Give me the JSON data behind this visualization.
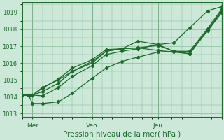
{
  "bg_color": "#cce8d8",
  "grid_color": "#88bb99",
  "line_color": "#1a6b2a",
  "xlabel": "Pression niveau de la mer( hPa )",
  "ylim": [
    1012.8,
    1019.6
  ],
  "yticks": [
    1013,
    1014,
    1015,
    1016,
    1017,
    1018,
    1019
  ],
  "xlim": [
    0.0,
    1.0
  ],
  "xtick_labels": [
    "Mer",
    "Ven",
    "Jeu"
  ],
  "xtick_positions": [
    0.05,
    0.35,
    0.68
  ],
  "vlines": [
    0.05,
    0.35,
    0.68
  ],
  "series_x": [
    [
      0.0,
      0.03,
      0.05,
      0.1,
      0.18,
      0.25,
      0.35,
      0.42,
      0.5,
      0.58,
      0.68,
      0.76,
      0.84,
      0.93,
      1.0
    ],
    [
      0.0,
      0.03,
      0.05,
      0.1,
      0.18,
      0.25,
      0.35,
      0.42,
      0.5,
      0.58,
      0.68,
      0.76,
      0.84,
      0.93,
      1.0
    ],
    [
      0.0,
      0.03,
      0.05,
      0.1,
      0.18,
      0.25,
      0.35,
      0.42,
      0.5,
      0.58,
      0.68,
      0.76,
      0.84,
      0.93,
      1.0
    ],
    [
      0.0,
      0.03,
      0.05,
      0.1,
      0.18,
      0.25,
      0.35,
      0.42,
      0.5,
      0.58,
      0.68,
      0.76,
      0.84,
      0.93,
      1.0
    ],
    [
      0.0,
      0.03,
      0.05,
      0.1,
      0.18,
      0.25,
      0.35,
      0.42,
      0.5,
      0.58,
      0.68,
      0.76,
      0.84,
      0.93,
      1.0
    ]
  ],
  "series_y": [
    [
      1014.1,
      1014.1,
      1014.1,
      1014.05,
      1014.55,
      1015.2,
      1015.85,
      1016.5,
      1016.7,
      1016.85,
      1017.1,
      1017.2,
      1018.1,
      1019.1,
      1019.35
    ],
    [
      1014.1,
      1014.1,
      1014.1,
      1014.3,
      1014.8,
      1015.5,
      1016.0,
      1016.7,
      1016.85,
      1016.9,
      1017.05,
      1016.7,
      1016.7,
      1018.05,
      1019.2
    ],
    [
      1014.1,
      1014.1,
      1014.1,
      1014.5,
      1015.05,
      1015.7,
      1016.2,
      1016.8,
      1016.85,
      1017.3,
      1017.1,
      1016.7,
      1016.55,
      1018.0,
      1019.1
    ],
    [
      1014.1,
      1014.1,
      1014.1,
      1014.55,
      1015.0,
      1015.5,
      1016.1,
      1016.7,
      1016.85,
      1016.9,
      1016.75,
      1016.65,
      1016.55,
      1017.95,
      1019.0
    ],
    [
      1014.1,
      1014.1,
      1013.6,
      1013.6,
      1013.7,
      1014.2,
      1015.1,
      1015.7,
      1016.1,
      1016.35,
      1016.65,
      1016.7,
      1016.65,
      1017.9,
      1019.0
    ]
  ]
}
